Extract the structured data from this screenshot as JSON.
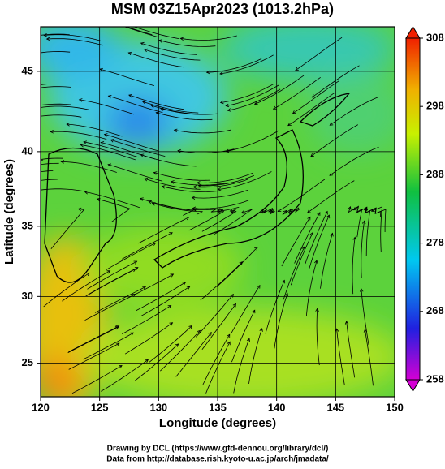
{
  "chart_data": {
    "type": "map",
    "title": "MSM 03Z15Apr2023 (1013.2hPa)",
    "x_label": "Longitude (degrees)",
    "y_label": "Latitude  (degrees)",
    "xlim": [
      120,
      150
    ],
    "xticks": [
      120,
      125,
      130,
      135,
      140,
      145,
      150
    ],
    "ylim": [
      22.4,
      47.6
    ],
    "yticks": [
      25,
      30,
      35,
      40,
      45
    ],
    "projection": "mercator",
    "grid": true,
    "colorbar": {
      "lim": [
        258,
        308
      ],
      "ticks": [
        258,
        268,
        278,
        288,
        298,
        308
      ]
    },
    "credits": [
      "Drawing by DCL (https://www.gfd-dennou.org/library/dcl/)",
      "Data from http://database.rish.kyoto-u.ac.jp/arch/jmadata/"
    ]
  }
}
